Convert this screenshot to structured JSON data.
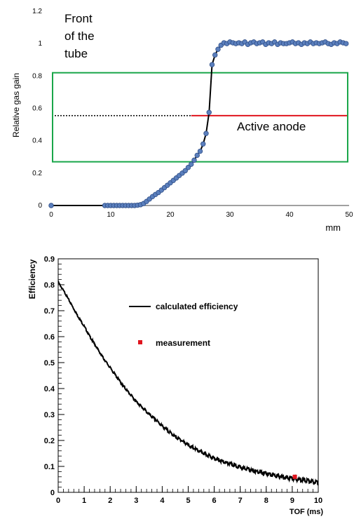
{
  "chart_data": [
    {
      "type": "scatter",
      "title": "",
      "xlabel": "mm",
      "ylabel": "Relative gas gain",
      "xlim": [
        0,
        50
      ],
      "ylim": [
        0,
        1.2
      ],
      "x_ticks": [
        "0",
        "10",
        "20",
        "30",
        "40",
        "50"
      ],
      "y_ticks": [
        "0",
        "0.2",
        "0.4",
        "0.6",
        "0.8",
        "1",
        "1.2"
      ],
      "grid": false,
      "colors": {
        "marker_fill": "#5b7fbd",
        "marker_edge": "#2f4e86",
        "curve": "#000000",
        "box": "#1aa64a",
        "anode_line": "#e0141e"
      },
      "annotations": {
        "front_line1": "Front",
        "front_line2": "of the",
        "front_line3": "tube",
        "anode_label": "Active anode"
      },
      "active_anode": {
        "y": 0.555,
        "x_dotted_range": [
          0,
          23.5
        ],
        "x_solid_range": [
          23.5,
          50
        ]
      },
      "green_box": {
        "x_range": [
          0,
          50
        ],
        "y_range": [
          0.27,
          0.82
        ]
      },
      "series": [
        {
          "marker": "circle",
          "x": [
            0,
            9,
            9.5,
            10,
            10.5,
            11,
            11.5,
            12,
            12.5,
            13,
            13.5,
            14,
            14.5,
            15,
            15.5,
            16,
            16.5,
            17,
            17.5,
            18,
            18.5,
            19,
            19.5,
            20,
            20.5,
            21,
            21.5,
            22,
            22.5,
            23,
            23.5,
            24,
            24.5,
            25,
            25.5,
            26,
            26.5,
            27,
            27.5,
            28,
            28.5,
            29,
            29.5,
            30,
            30.5,
            31,
            31.5,
            32,
            32.5,
            33,
            33.5,
            34,
            34.5,
            35,
            35.5,
            36,
            36.5,
            37,
            37.5,
            38,
            38.5,
            39,
            39.5,
            40,
            40.5,
            41,
            41.5,
            42,
            42.5,
            43,
            43.5,
            44,
            44.5,
            45,
            45.5,
            46,
            46.5,
            47,
            47.5,
            48,
            48.5,
            49,
            49.5
          ],
          "y": [
            0,
            0,
            0,
            0,
            0,
            0,
            0,
            0,
            0,
            0,
            0,
            0,
            0.002,
            0.005,
            0.012,
            0.025,
            0.04,
            0.055,
            0.068,
            0.08,
            0.095,
            0.11,
            0.125,
            0.14,
            0.155,
            0.17,
            0.185,
            0.2,
            0.215,
            0.235,
            0.255,
            0.28,
            0.31,
            0.335,
            0.38,
            0.445,
            0.575,
            0.87,
            0.93,
            0.965,
            0.99,
            1.005,
            1.0,
            1.01,
            1.005,
            1.0,
            1.005,
            1.0,
            1.01,
            0.995,
            1.005,
            1.01,
            1.0,
            1.005,
            1.01,
            0.995,
            1.005,
            1.0,
            1.01,
            0.995,
            1.005,
            1.0,
            1.0,
            1.005,
            1.01,
            1.0,
            1.005,
            0.995,
            1.005,
            1.0,
            1.01,
            1.0,
            1.005,
            1.0,
            1.005,
            1.01,
            1.0,
            0.995,
            1.005,
            1.0,
            1.01,
            1.005,
            1.0
          ]
        }
      ]
    },
    {
      "type": "line",
      "title": "",
      "xlabel": "TOF (ms)",
      "ylabel": "Efficiency",
      "xlim": [
        0,
        10
      ],
      "ylim": [
        0,
        0.9
      ],
      "x_ticks": [
        "0",
        "1",
        "2",
        "3",
        "4",
        "5",
        "6",
        "7",
        "8",
        "9",
        "10"
      ],
      "y_ticks": [
        "0",
        "0.1",
        "0.2",
        "0.3",
        "0.4",
        "0.5",
        "0.6",
        "0.7",
        "0.8",
        "0.9"
      ],
      "grid": false,
      "legend_position": "top-right",
      "colors": {
        "calc": "#000000",
        "measurement": "#e0141e"
      },
      "series": [
        {
          "name": "calculated efficiency",
          "x": [
            0,
            0.25,
            0.5,
            0.75,
            1,
            1.25,
            1.5,
            1.75,
            2,
            2.25,
            2.5,
            2.75,
            3,
            3.25,
            3.5,
            3.75,
            4,
            4.25,
            4.5,
            4.75,
            5,
            5.25,
            5.5,
            5.75,
            6,
            6.25,
            6.5,
            6.75,
            7,
            7.25,
            7.5,
            7.75,
            8,
            8.25,
            8.5,
            8.75,
            9,
            9.25,
            9.5,
            9.75,
            10
          ],
          "values": [
            0.81,
            0.77,
            0.725,
            0.68,
            0.64,
            0.595,
            0.555,
            0.515,
            0.48,
            0.445,
            0.41,
            0.38,
            0.35,
            0.325,
            0.3,
            0.28,
            0.255,
            0.235,
            0.215,
            0.2,
            0.182,
            0.168,
            0.155,
            0.143,
            0.132,
            0.122,
            0.113,
            0.105,
            0.097,
            0.09,
            0.083,
            0.077,
            0.072,
            0.067,
            0.062,
            0.058,
            0.054,
            0.05,
            0.047,
            0.043,
            0.038
          ]
        },
        {
          "name": "measurement",
          "marker": "square",
          "x": [
            9.1
          ],
          "values": [
            0.06
          ]
        }
      ]
    }
  ]
}
